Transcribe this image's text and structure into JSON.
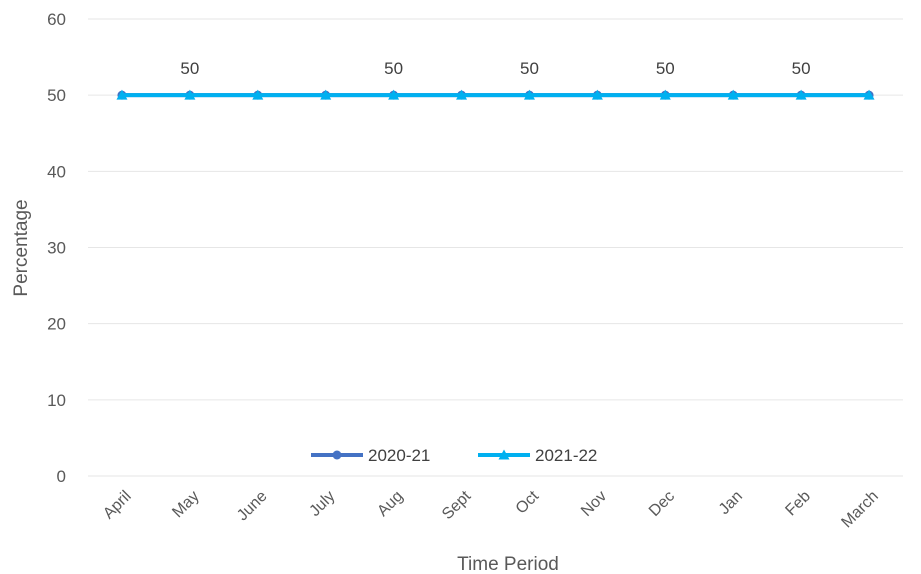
{
  "chart_data": {
    "type": "line",
    "title": "",
    "xlabel": "Time Period",
    "ylabel": "Percentage",
    "ylim": [
      0,
      60
    ],
    "yticks": [
      0,
      10,
      20,
      30,
      40,
      50,
      60
    ],
    "grid": true,
    "legend_position": "bottom-center",
    "categories": [
      "April",
      "May",
      "June",
      "July",
      "Aug",
      "Sept",
      "Oct",
      "Nov",
      "Dec",
      "Jan",
      "Feb",
      "March"
    ],
    "series": [
      {
        "name": "2020-21",
        "marker": "circle",
        "color": "#4472C4",
        "values": [
          50,
          50,
          50,
          50,
          50,
          50,
          50,
          50,
          50,
          50,
          50,
          50
        ]
      },
      {
        "name": "2021-22",
        "marker": "triangle",
        "color": "#00B0F0",
        "values": [
          50,
          50,
          50,
          50,
          50,
          50,
          50,
          50,
          50,
          50,
          50,
          50
        ]
      }
    ],
    "data_labels": [
      {
        "category": "May",
        "value": "50"
      },
      {
        "category": "Aug",
        "value": "50"
      },
      {
        "category": "Oct",
        "value": "50"
      },
      {
        "category": "Dec",
        "value": "50"
      },
      {
        "category": "Feb",
        "value": "50"
      }
    ]
  }
}
